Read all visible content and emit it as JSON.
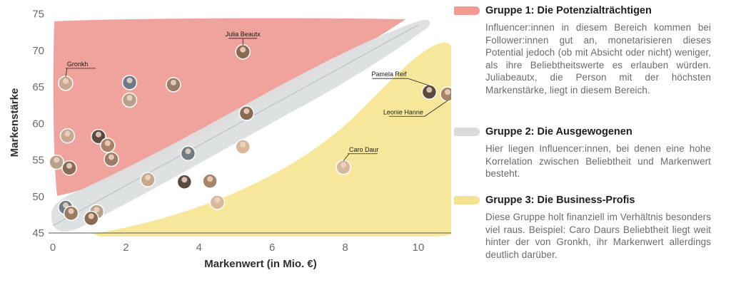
{
  "chart_data": {
    "type": "scatter",
    "xlabel": "Markenwert (in Mio. €)",
    "ylabel": "Markenstärke",
    "xlim": [
      0,
      11.5
    ],
    "ylim": [
      45,
      75
    ],
    "xticks": [
      0,
      2,
      4,
      6,
      8,
      10
    ],
    "yticks": [
      45,
      50,
      55,
      60,
      65,
      70,
      75
    ],
    "grid": false,
    "trendline": [
      [
        0,
        46
      ],
      [
        10,
        73.5
      ]
    ],
    "regions": [
      {
        "group": "Gruppe 1",
        "color": "#f0a39c"
      },
      {
        "group": "Gruppe 2",
        "color": "#dcdcdc"
      },
      {
        "group": "Gruppe 3",
        "color": "#f7e79a"
      }
    ],
    "points": [
      {
        "label": "Julia Beautx",
        "x": 5.2,
        "y": 69.8
      },
      {
        "label": "Gronkh",
        "x": 0.35,
        "y": 65.5
      },
      {
        "label": "Pamela Reif",
        "x": 10.3,
        "y": 64.3
      },
      {
        "label": "Leonie Hanne",
        "x": 10.8,
        "y": 64.0
      },
      {
        "label": "Caro Daur",
        "x": 7.95,
        "y": 54.0
      },
      {
        "label": "",
        "x": 2.1,
        "y": 65.6
      },
      {
        "label": "",
        "x": 3.3,
        "y": 65.3
      },
      {
        "label": "",
        "x": 2.1,
        "y": 63.2
      },
      {
        "label": "",
        "x": 5.3,
        "y": 61.4
      },
      {
        "label": "",
        "x": 0.4,
        "y": 58.3
      },
      {
        "label": "",
        "x": 1.25,
        "y": 58.2
      },
      {
        "label": "",
        "x": 1.5,
        "y": 57.0
      },
      {
        "label": "",
        "x": 5.2,
        "y": 56.8
      },
      {
        "label": "",
        "x": 3.7,
        "y": 55.9
      },
      {
        "label": "",
        "x": 1.6,
        "y": 55.1
      },
      {
        "label": "",
        "x": 0.1,
        "y": 54.7
      },
      {
        "label": "",
        "x": 0.45,
        "y": 53.9
      },
      {
        "label": "",
        "x": 2.6,
        "y": 52.3
      },
      {
        "label": "",
        "x": 3.6,
        "y": 52.0
      },
      {
        "label": "",
        "x": 4.3,
        "y": 52.1
      },
      {
        "label": "",
        "x": 4.5,
        "y": 49.2
      },
      {
        "label": "",
        "x": 0.35,
        "y": 48.5
      },
      {
        "label": "",
        "x": 0.5,
        "y": 47.7
      },
      {
        "label": "",
        "x": 1.2,
        "y": 47.9
      },
      {
        "label": "",
        "x": 1.05,
        "y": 47.0
      }
    ]
  },
  "legend": {
    "groups": [
      {
        "title": "Gruppe 1: Die Potenzialträchtigen",
        "color": "#ef9a93",
        "description": "Influencer:innen in diesem Bereich kommen bei Follower:innen gut an, monetarisieren dieses Potential jedoch (ob mit Absicht oder nicht) weniger, als ihre Beliebtheitswerte es erlauben würden. Juliabeautx, die Person mit der höchsten Markenstärke, liegt in diesem Bereich."
      },
      {
        "title": "Gruppe 2: Die Ausgewogenen",
        "color": "#d9dcdd",
        "description": "Hier liegen Influencer:innen, bei denen eine hohe Korrelation zwischen Beliebtheit und Markenwert besteht."
      },
      {
        "title": "Gruppe 3: Die Business-Profis",
        "color": "#f6e38f",
        "description": "Diese Gruppe holt finanziell im Verhältnis besonders viel raus. Beispiel: Caro Daurs Beliebtheit liegt weit hinter der von Gronkh, ihr Markenwert allerdings deutlich darüber."
      }
    ]
  }
}
